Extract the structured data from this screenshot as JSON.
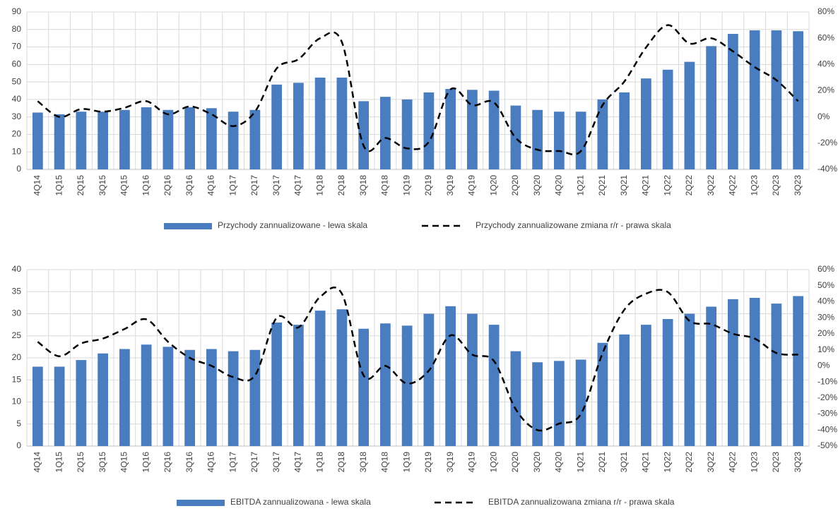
{
  "chart_data": [
    {
      "type": "bar",
      "categories": [
        "4Q14",
        "1Q15",
        "2Q15",
        "3Q15",
        "4Q15",
        "1Q16",
        "2Q16",
        "3Q16",
        "4Q16",
        "1Q17",
        "2Q17",
        "3Q17",
        "4Q17",
        "1Q18",
        "2Q18",
        "3Q18",
        "4Q18",
        "1Q19",
        "2Q19",
        "3Q19",
        "4Q19",
        "1Q20",
        "2Q20",
        "3Q20",
        "4Q20",
        "1Q21",
        "2Q21",
        "3Q21",
        "4Q21",
        "1Q22",
        "2Q22",
        "3Q22",
        "4Q22",
        "1Q23",
        "2Q23",
        "3Q23"
      ],
      "series": [
        {
          "name": "Przychody zannualizowane - lewa skala",
          "type": "bar",
          "color": "#4a7cc0",
          "values": [
            32.5,
            31.5,
            33,
            33,
            34,
            35.5,
            34,
            35.5,
            35,
            33,
            34,
            48.5,
            49.5,
            52.5,
            52.5,
            39,
            41.5,
            40,
            44,
            46,
            45.5,
            45,
            36.5,
            34,
            33,
            33,
            40,
            44,
            52,
            57,
            61.5,
            70.5,
            77.5,
            79.5,
            79.5,
            79
          ]
        },
        {
          "name": "Przychody zannualizowane zmiana r/r - prawa skala",
          "type": "line",
          "axis": "y2",
          "color": "#000000",
          "values": [
            12,
            0,
            6,
            4,
            7,
            12,
            2,
            8,
            2,
            -7,
            4,
            37,
            44,
            60,
            57,
            -22,
            -16,
            -24,
            -19,
            21,
            9,
            11,
            -16,
            -25,
            -26,
            -26,
            9,
            27,
            53,
            70,
            56,
            60,
            50,
            38,
            28,
            12
          ]
        }
      ],
      "ylim": [
        0,
        90
      ],
      "yticks": [
        0,
        10,
        20,
        30,
        40,
        50,
        60,
        70,
        80,
        90
      ],
      "y2lim": [
        -40,
        80
      ],
      "y2ticks": [
        {
          "value": -40,
          "label": "-40%"
        },
        {
          "value": -20,
          "label": "-20%"
        },
        {
          "value": 0,
          "label": "0%"
        },
        {
          "value": 20,
          "label": "20%"
        },
        {
          "value": 40,
          "label": "40%"
        },
        {
          "value": 60,
          "label": "60%"
        },
        {
          "value": 80,
          "label": "80%"
        }
      ],
      "grid": true,
      "legend": "bottom"
    },
    {
      "type": "bar",
      "categories": [
        "4Q14",
        "1Q15",
        "2Q15",
        "3Q15",
        "4Q15",
        "1Q16",
        "2Q16",
        "3Q16",
        "4Q16",
        "1Q17",
        "2Q17",
        "3Q17",
        "4Q17",
        "1Q18",
        "2Q18",
        "3Q18",
        "4Q18",
        "1Q19",
        "2Q19",
        "3Q19",
        "4Q19",
        "1Q20",
        "2Q20",
        "3Q20",
        "4Q20",
        "1Q21",
        "2Q21",
        "3Q21",
        "4Q21",
        "1Q22",
        "2Q22",
        "3Q22",
        "4Q22",
        "1Q23",
        "2Q23",
        "3Q23"
      ],
      "series": [
        {
          "name": "EBITDA zannualizowana - lewa skala",
          "type": "bar",
          "color": "#4a7cc0",
          "values": [
            18,
            18,
            19.5,
            21,
            22,
            23,
            22.5,
            21.8,
            22,
            21.5,
            21.8,
            28,
            27.5,
            30.7,
            31,
            26.6,
            27.8,
            27.3,
            30,
            31.7,
            30,
            27.5,
            21.5,
            19,
            19.3,
            19.6,
            23.4,
            25.3,
            27.5,
            28.8,
            30,
            31.6,
            33.3,
            33.6,
            32.3,
            34
          ]
        },
        {
          "name": "EBITDA zannualizowana zmiana r/r - prawa skala",
          "type": "line",
          "axis": "y2",
          "color": "#000000",
          "values": [
            15,
            6,
            14,
            17,
            23,
            29,
            15,
            5,
            0,
            -7,
            -6,
            30,
            24,
            43,
            45,
            -6,
            0,
            -11,
            -3,
            19,
            7,
            3,
            -27,
            -40,
            -36,
            -30,
            8,
            35,
            45,
            46,
            28,
            26,
            20,
            17,
            8,
            7
          ]
        }
      ],
      "ylim": [
        0,
        40
      ],
      "yticks": [
        0,
        5,
        10,
        15,
        20,
        25,
        30,
        35,
        40
      ],
      "y2lim": [
        -50,
        60
      ],
      "y2ticks": [
        {
          "value": -50,
          "label": "-50%"
        },
        {
          "value": -40,
          "label": "-40%"
        },
        {
          "value": -30,
          "label": "-30%"
        },
        {
          "value": -20,
          "label": "-20%"
        },
        {
          "value": -10,
          "label": "-10%"
        },
        {
          "value": 0,
          "label": "0%"
        },
        {
          "value": 10,
          "label": "10%"
        },
        {
          "value": 20,
          "label": "20%"
        },
        {
          "value": 30,
          "label": "30%"
        },
        {
          "value": 40,
          "label": "40%"
        },
        {
          "value": 50,
          "label": "50%"
        },
        {
          "value": 60,
          "label": "60%"
        }
      ],
      "grid": true,
      "legend": "bottom"
    }
  ]
}
